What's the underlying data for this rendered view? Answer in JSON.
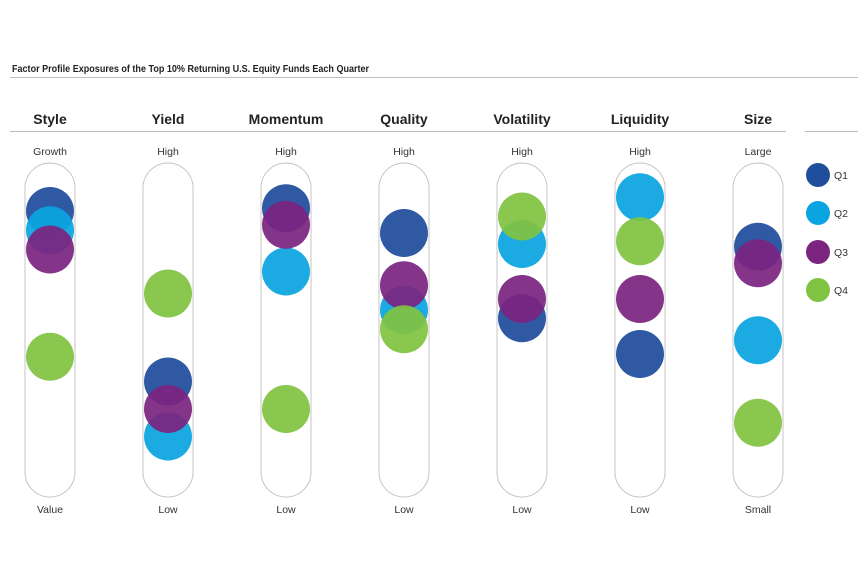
{
  "title": "Factor Profile Exposures of the Top 10% Returning U.S. Equity Funds Each Quarter",
  "chart_data": {
    "type": "scatter",
    "scale": "0 = bottom label, 100 = top label",
    "ylim": [
      0,
      100
    ],
    "factors": [
      {
        "name": "Style",
        "top": "Growth",
        "bottom": "Value"
      },
      {
        "name": "Yield",
        "top": "High",
        "bottom": "Low"
      },
      {
        "name": "Momentum",
        "top": "High",
        "bottom": "Low"
      },
      {
        "name": "Quality",
        "top": "High",
        "bottom": "Low"
      },
      {
        "name": "Volatility",
        "top": "High",
        "bottom": "Low"
      },
      {
        "name": "Liquidity",
        "top": "High",
        "bottom": "Low"
      },
      {
        "name": "Size",
        "top": "Large",
        "bottom": "Small"
      }
    ],
    "series": [
      {
        "name": "Q1",
        "color": "#1f4e9c",
        "values": [
          92,
          30,
          93,
          84,
          53,
          40,
          79
        ]
      },
      {
        "name": "Q2",
        "color": "#0aa5e0",
        "values": [
          85,
          10,
          70,
          56,
          80,
          97,
          45
        ]
      },
      {
        "name": "Q3",
        "color": "#7b2580",
        "values": [
          78,
          20,
          87,
          65,
          60,
          60,
          73
        ]
      },
      {
        "name": "Q4",
        "color": "#80c342",
        "values": [
          39,
          62,
          20,
          49,
          90,
          81,
          15
        ]
      }
    ],
    "legend": "right"
  }
}
